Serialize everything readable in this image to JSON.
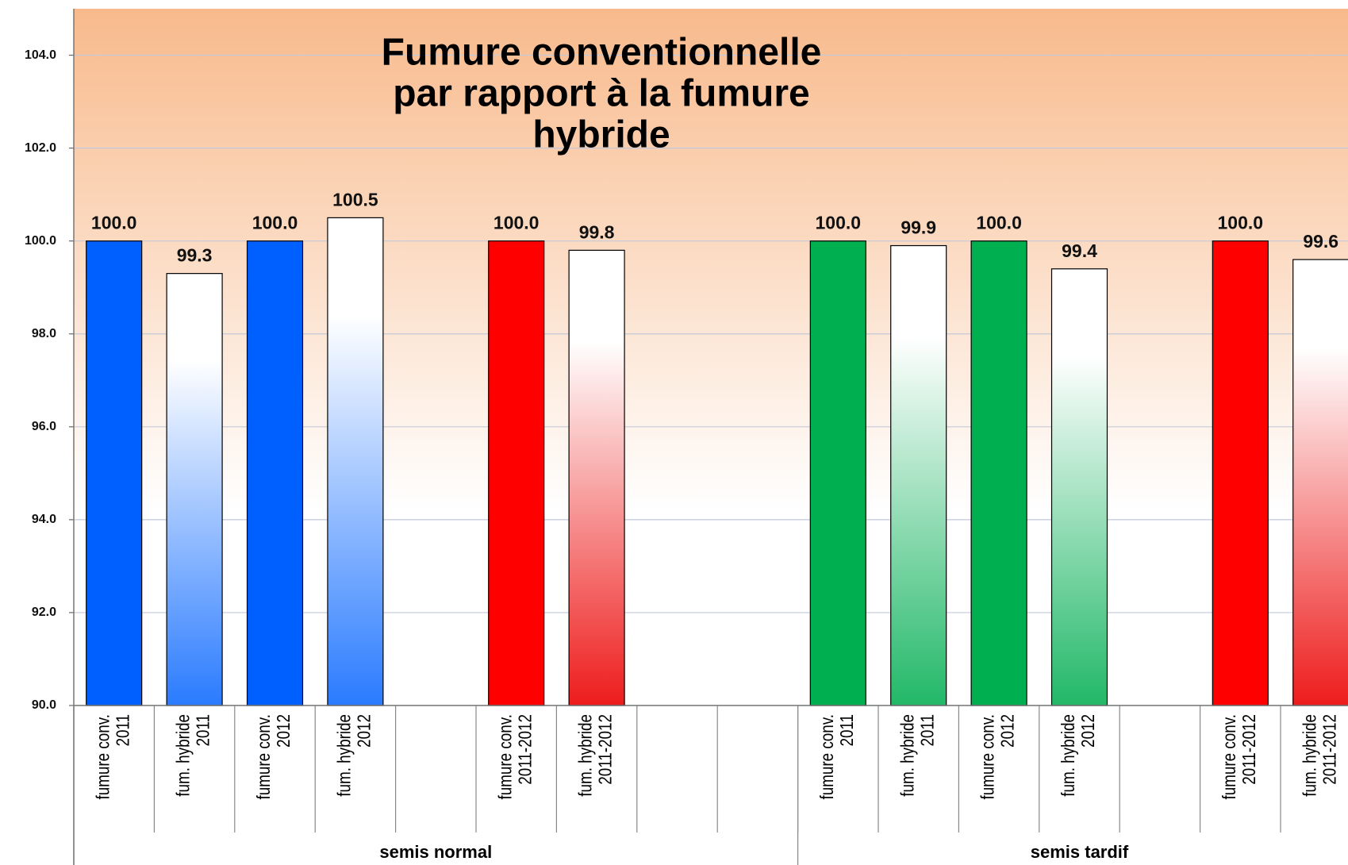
{
  "chart_data": {
    "type": "bar",
    "title": [
      "Fumure conventionnelle",
      "par rapport à la fumure",
      "hybride"
    ],
    "categories": [
      [
        "fumure conv.",
        "2011"
      ],
      [
        "fum. hybride",
        "2011"
      ],
      [
        "fumure conv.",
        "2012"
      ],
      [
        "fum. hybride",
        "2012"
      ],
      null,
      [
        "fumure conv.",
        "2011-2012"
      ],
      [
        "fum. hybride",
        "2011-2012"
      ],
      null,
      null,
      [
        "fumure conv.",
        "2011"
      ],
      [
        "fum. hybride",
        "2011"
      ],
      [
        "fumure conv.",
        "2012"
      ],
      [
        "fum. hybride",
        "2012"
      ],
      null,
      [
        "fumure conv.",
        "2011-2012"
      ],
      [
        "fum. hybride",
        "2011-2012"
      ]
    ],
    "values": [
      100,
      99.3,
      100,
      100.5,
      null,
      100,
      99.8,
      null,
      null,
      100,
      99.9,
      100,
      99.4,
      null,
      100,
      99.6
    ],
    "value_labels": [
      "100.0",
      "99.3",
      "100.0",
      "100.5",
      null,
      "100.0",
      "99.8",
      null,
      null,
      "100.0",
      "99.9",
      "100.0",
      "99.4",
      null,
      "100.0",
      "99.6"
    ],
    "colors": [
      "#0060ff",
      "#2a7bff",
      "#0060ff",
      "#2a7bff",
      null,
      "#ff0000",
      "#ee1c1c",
      null,
      null,
      "#00b050",
      "#22b868",
      "#00b050",
      "#22b868",
      null,
      "#ff0000",
      "#ee1c1c"
    ],
    "fill_styles": [
      "solid",
      "gradient",
      "solid",
      "gradient",
      null,
      "solid",
      "gradient",
      null,
      null,
      "solid",
      "gradient",
      "solid",
      "gradient",
      null,
      "solid",
      "gradient"
    ],
    "groups": [
      {
        "label": "semis normal",
        "count": 9
      },
      {
        "label": "semis tardif",
        "count": 7
      }
    ],
    "ylim": [
      90,
      105
    ],
    "yticks": [
      {
        "value": 90,
        "label": "90.0"
      },
      {
        "value": 92,
        "label": "92.0"
      },
      {
        "value": 94,
        "label": "94.0"
      },
      {
        "value": 96,
        "label": "96.0"
      },
      {
        "value": 98,
        "label": "98.0"
      },
      {
        "value": 100,
        "label": "100.0"
      },
      {
        "value": 102,
        "label": "102.0"
      },
      {
        "value": 104,
        "label": "104.0"
      }
    ],
    "grid": true
  }
}
